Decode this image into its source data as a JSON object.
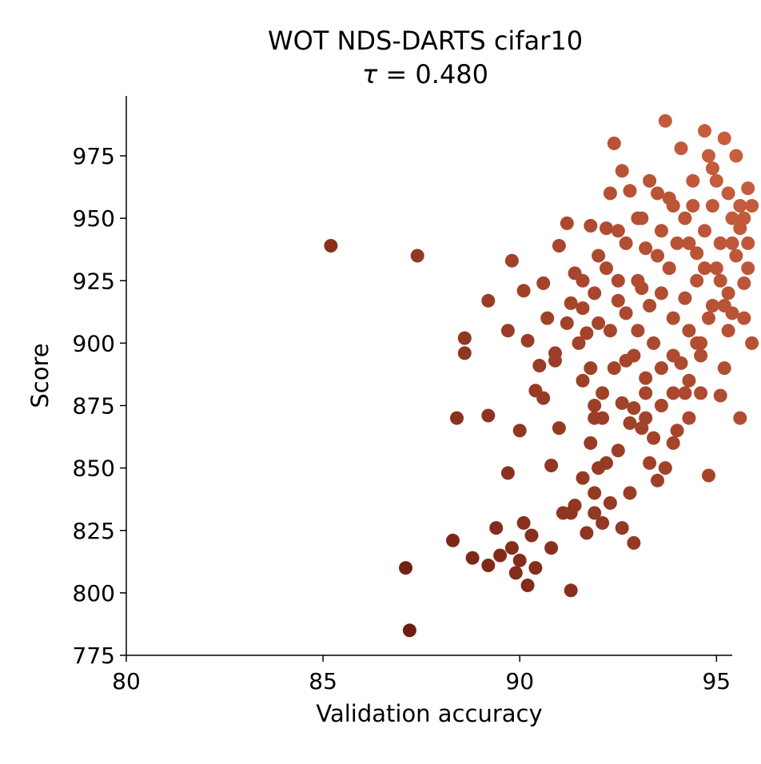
{
  "chart_data": {
    "type": "scatter",
    "title": "WOT NDS-DARTS cifar10",
    "subtitle_prefix": "τ = ",
    "subtitle_value": "0.480",
    "xlabel": "Validation accuracy",
    "ylabel": "Score",
    "xlim": [
      80,
      95.4
    ],
    "ylim": [
      775,
      999
    ],
    "xticks": [
      "80",
      "85",
      "90",
      "95"
    ],
    "yticks": [
      "775",
      "800",
      "825",
      "850",
      "875",
      "900",
      "925",
      "950",
      "975"
    ],
    "grid": false,
    "color_low": "#5c1006",
    "color_high": "#cc6140",
    "points": [
      [
        85.2,
        939
      ],
      [
        87.4,
        935
      ],
      [
        87.1,
        810
      ],
      [
        87.2,
        785
      ],
      [
        88.4,
        870
      ],
      [
        88.6,
        902
      ],
      [
        88.6,
        896
      ],
      [
        89.2,
        917
      ],
      [
        89.2,
        871
      ],
      [
        88.8,
        814
      ],
      [
        88.3,
        821
      ],
      [
        89.2,
        811
      ],
      [
        89.4,
        826
      ],
      [
        89.5,
        815
      ],
      [
        89.7,
        905
      ],
      [
        89.7,
        848
      ],
      [
        89.8,
        933
      ],
      [
        89.8,
        818
      ],
      [
        89.9,
        808
      ],
      [
        90.0,
        865
      ],
      [
        90.0,
        813
      ],
      [
        90.1,
        921
      ],
      [
        90.1,
        828
      ],
      [
        90.2,
        901
      ],
      [
        90.2,
        803
      ],
      [
        90.3,
        823
      ],
      [
        90.4,
        881
      ],
      [
        90.4,
        810
      ],
      [
        90.5,
        891
      ],
      [
        90.6,
        924
      ],
      [
        90.6,
        878
      ],
      [
        90.7,
        910
      ],
      [
        90.8,
        851
      ],
      [
        90.8,
        818
      ],
      [
        90.9,
        896
      ],
      [
        91.0,
        939
      ],
      [
        91.0,
        866
      ],
      [
        91.1,
        832
      ],
      [
        91.2,
        948
      ],
      [
        91.3,
        916
      ],
      [
        91.3,
        801
      ],
      [
        91.4,
        928
      ],
      [
        91.5,
        900
      ],
      [
        91.6,
        885
      ],
      [
        91.7,
        904
      ],
      [
        91.8,
        947
      ],
      [
        91.8,
        860
      ],
      [
        91.9,
        875
      ],
      [
        92.0,
        935
      ],
      [
        92.0,
        908
      ],
      [
        92.1,
        870
      ],
      [
        92.2,
        946
      ],
      [
        92.3,
        960
      ],
      [
        92.4,
        980
      ],
      [
        92.5,
        917
      ],
      [
        92.6,
        969
      ],
      [
        92.6,
        826
      ],
      [
        92.7,
        893
      ],
      [
        92.8,
        961
      ],
      [
        92.9,
        874
      ],
      [
        92.9,
        820
      ],
      [
        93.0,
        950
      ],
      [
        93.1,
        922
      ],
      [
        93.2,
        886
      ],
      [
        93.3,
        965
      ],
      [
        93.4,
        900
      ],
      [
        93.5,
        935
      ],
      [
        93.6,
        875
      ],
      [
        93.7,
        989
      ],
      [
        93.8,
        958
      ],
      [
        93.9,
        860
      ],
      [
        94.0,
        940
      ],
      [
        94.1,
        978
      ],
      [
        94.2,
        918
      ],
      [
        94.3,
        870
      ],
      [
        94.4,
        955
      ],
      [
        94.5,
        936
      ],
      [
        94.6,
        900
      ],
      [
        94.7,
        985
      ],
      [
        94.8,
        847
      ],
      [
        94.9,
        970
      ],
      [
        95.0,
        930
      ],
      [
        95.1,
        879
      ],
      [
        95.2,
        982
      ],
      [
        95.3,
        960
      ],
      [
        95.4,
        912
      ],
      [
        95.5,
        975
      ],
      [
        95.6,
        946
      ],
      [
        95.6,
        870
      ],
      [
        95.7,
        924
      ],
      [
        95.8,
        962
      ],
      [
        95.9,
        955
      ],
      [
        95.9,
        900
      ],
      [
        90.9,
        893
      ],
      [
        91.2,
        908
      ],
      [
        91.6,
        914
      ],
      [
        91.4,
        835
      ],
      [
        91.7,
        824
      ],
      [
        91.9,
        840
      ],
      [
        92.2,
        852
      ],
      [
        92.6,
        876
      ],
      [
        92.8,
        840
      ],
      [
        93.1,
        866
      ],
      [
        93.3,
        852
      ],
      [
        93.5,
        845
      ],
      [
        93.7,
        850
      ],
      [
        93.9,
        880
      ],
      [
        94.1,
        892
      ],
      [
        94.3,
        905
      ],
      [
        94.5,
        925
      ],
      [
        94.7,
        945
      ],
      [
        94.9,
        955
      ],
      [
        95.1,
        940
      ],
      [
        95.3,
        920
      ],
      [
        95.5,
        935
      ],
      [
        95.7,
        910
      ],
      [
        95.2,
        890
      ],
      [
        94.6,
        880
      ],
      [
        94.0,
        865
      ],
      [
        93.4,
        862
      ],
      [
        93.2,
        880
      ],
      [
        92.9,
        895
      ],
      [
        92.4,
        890
      ],
      [
        92.1,
        880
      ],
      [
        91.9,
        870
      ],
      [
        91.8,
        890
      ],
      [
        92.3,
        905
      ],
      [
        92.7,
        912
      ],
      [
        93.0,
        925
      ],
      [
        93.2,
        938
      ],
      [
        93.6,
        945
      ],
      [
        93.8,
        930
      ],
      [
        94.2,
        950
      ],
      [
        94.4,
        965
      ],
      [
        94.8,
        975
      ],
      [
        95.0,
        965
      ],
      [
        95.4,
        950
      ],
      [
        95.6,
        955
      ],
      [
        95.8,
        940
      ],
      [
        95.3,
        905
      ],
      [
        94.9,
        915
      ],
      [
        94.6,
        895
      ],
      [
        94.3,
        885
      ],
      [
        93.9,
        910
      ],
      [
        93.6,
        920
      ],
      [
        93.3,
        915
      ],
      [
        93.0,
        905
      ],
      [
        92.5,
        925
      ],
      [
        92.2,
        930
      ],
      [
        91.9,
        920
      ],
      [
        91.6,
        925
      ],
      [
        91.3,
        832
      ],
      [
        91.6,
        846
      ],
      [
        91.9,
        832
      ],
      [
        92.1,
        828
      ],
      [
        92.3,
        836
      ],
      [
        92.0,
        850
      ],
      [
        92.5,
        857
      ],
      [
        92.8,
        868
      ],
      [
        93.2,
        870
      ],
      [
        93.6,
        890
      ],
      [
        93.9,
        895
      ],
      [
        94.2,
        880
      ],
      [
        94.5,
        900
      ],
      [
        94.8,
        910
      ],
      [
        95.1,
        925
      ],
      [
        95.4,
        940
      ],
      [
        95.7,
        950
      ],
      [
        95.8,
        930
      ],
      [
        95.2,
        915
      ],
      [
        94.7,
        930
      ],
      [
        94.3,
        940
      ],
      [
        93.9,
        955
      ],
      [
        93.5,
        960
      ],
      [
        93.1,
        950
      ],
      [
        92.7,
        940
      ],
      [
        92.5,
        945
      ]
    ]
  }
}
